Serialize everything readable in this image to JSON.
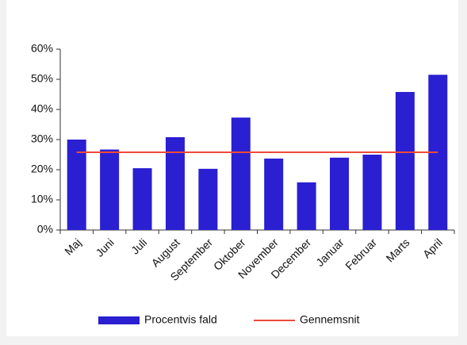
{
  "chart_data": {
    "type": "bar",
    "categories": [
      "Maj",
      "Juni",
      "Juli",
      "August",
      "September",
      "Oktober",
      "November",
      "December",
      "Januar",
      "Februar",
      "Marts",
      "April"
    ],
    "series": [
      {
        "name": "Procentvis fald",
        "type": "bar",
        "color": "#2a1fd1",
        "values": [
          30,
          26.7,
          20.5,
          30.8,
          20.3,
          37.3,
          23.7,
          15.8,
          24,
          25,
          45.8,
          51.5
        ]
      },
      {
        "name": "Gennemsnit",
        "type": "line",
        "color": "#f04a3a",
        "values": [
          25.8,
          25.8,
          25.8,
          25.8,
          25.8,
          25.8,
          25.8,
          25.8,
          25.8,
          25.8,
          25.8,
          25.8
        ]
      }
    ],
    "ylim": [
      0,
      60
    ],
    "yticks": [
      {
        "value": 0,
        "label": "0%"
      },
      {
        "value": 10,
        "label": "10%"
      },
      {
        "value": 20,
        "label": "20%"
      },
      {
        "value": 30,
        "label": "30%"
      },
      {
        "value": 40,
        "label": "40%"
      },
      {
        "value": 50,
        "label": "50%"
      },
      {
        "value": 60,
        "label": "60%"
      }
    ],
    "legend": "bottom"
  }
}
